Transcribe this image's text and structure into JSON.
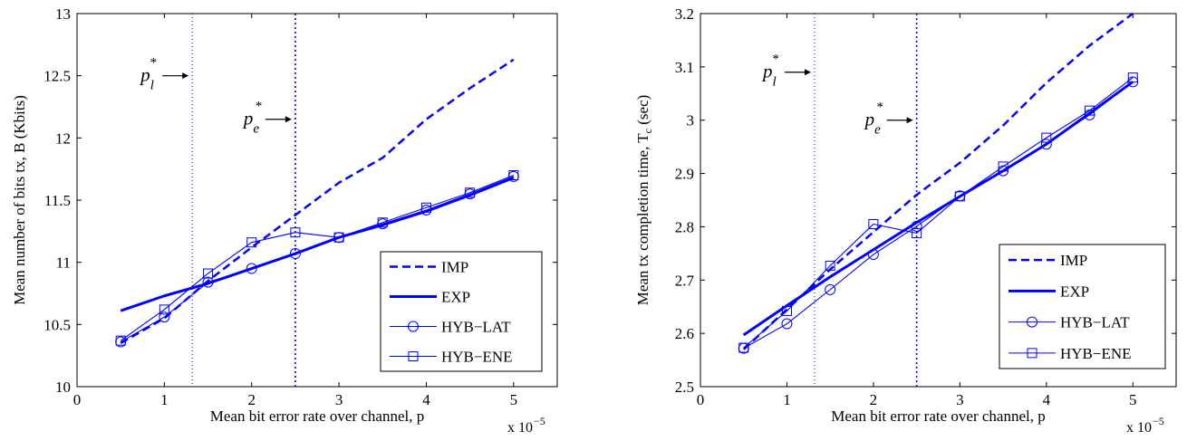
{
  "figure": {
    "background": "#ffffff",
    "series_color": "#0000ff",
    "axis_color": "#000000"
  },
  "chart_data": [
    {
      "type": "line",
      "xlabel": "Mean bit error rate over channel, p",
      "ylabel": "Mean number of bits tx, B (Kbits)",
      "x_multiplier_label": "x 10",
      "x_multiplier_exp": "−5",
      "xlim": [
        0,
        5.5
      ],
      "ylim": [
        10,
        13
      ],
      "xticks": [
        0,
        1,
        2,
        3,
        4,
        5
      ],
      "xtick_labels": [
        "0",
        "1",
        "2",
        "3",
        "4",
        "5"
      ],
      "yticks": [
        10,
        10.5,
        11,
        11.5,
        12,
        12.5,
        13
      ],
      "ytick_labels": [
        "10",
        "10.5",
        "11",
        "11.5",
        "12",
        "12.5",
        "13"
      ],
      "grid": false,
      "legend_position": "bottom-right",
      "vlines": [
        {
          "x": 1.32,
          "label_base": "p",
          "label_sub": "l",
          "label_sup": "*",
          "style": "dotted-thin",
          "label_y": 12.5
        },
        {
          "x": 2.5,
          "label_base": "p",
          "label_sub": "e",
          "label_sup": "*",
          "style": "dotted",
          "label_y": 12.15
        }
      ],
      "series": [
        {
          "name": "IMP",
          "style": "dashed",
          "marker": "none",
          "x": [
            0.5,
            1,
            1.5,
            2,
            2.5,
            3,
            3.5,
            4,
            4.5,
            5
          ],
          "y": [
            10.35,
            10.55,
            10.85,
            11.12,
            11.38,
            11.64,
            11.84,
            12.15,
            12.4,
            12.63
          ]
        },
        {
          "name": "EXP",
          "style": "thick",
          "marker": "none",
          "x": [
            0.5,
            1,
            1.5,
            2,
            2.5,
            3,
            3.5,
            4,
            4.5,
            5
          ],
          "y": [
            10.61,
            10.73,
            10.83,
            10.95,
            11.07,
            11.2,
            11.3,
            11.41,
            11.54,
            11.68
          ]
        },
        {
          "name": "HYB−LAT",
          "style": "thin",
          "marker": "circle",
          "x": [
            0.5,
            1,
            1.5,
            2,
            2.5,
            3,
            3.5,
            4,
            4.5,
            5
          ],
          "y": [
            10.36,
            10.56,
            10.84,
            10.95,
            11.07,
            11.2,
            11.31,
            11.42,
            11.55,
            11.69
          ]
        },
        {
          "name": "HYB−ENE",
          "style": "thin",
          "marker": "square",
          "x": [
            0.5,
            1,
            1.5,
            2,
            2.5,
            3,
            3.5,
            4,
            4.5,
            5
          ],
          "y": [
            10.37,
            10.62,
            10.91,
            11.16,
            11.24,
            11.2,
            11.32,
            11.44,
            11.56,
            11.7
          ]
        }
      ]
    },
    {
      "type": "line",
      "xlabel": "Mean bit error rate over channel, p",
      "ylabel": "Mean tx completion time, T",
      "ylabel_sub": "c",
      "ylabel_suffix": " (sec)",
      "x_multiplier_label": "x 10",
      "x_multiplier_exp": "−5",
      "xlim": [
        0,
        5.5
      ],
      "ylim": [
        2.5,
        3.2
      ],
      "xticks": [
        0,
        1,
        2,
        3,
        4,
        5
      ],
      "xtick_labels": [
        "0",
        "1",
        "2",
        "3",
        "4",
        "5"
      ],
      "yticks": [
        2.5,
        2.6,
        2.7,
        2.8,
        2.9,
        3.0,
        3.1,
        3.2
      ],
      "ytick_labels": [
        "2.5",
        "2.6",
        "2.7",
        "2.8",
        "2.9",
        "3",
        "3.1",
        "3.2"
      ],
      "grid": false,
      "legend_position": "bottom-right",
      "vlines": [
        {
          "x": 1.32,
          "label_base": "p",
          "label_sub": "l",
          "label_sup": "*",
          "style": "dotted-thin",
          "label_y": 3.09
        },
        {
          "x": 2.5,
          "label_base": "p",
          "label_sub": "e",
          "label_sup": "*",
          "style": "dotted",
          "label_y": 3.0
        }
      ],
      "series": [
        {
          "name": "IMP",
          "style": "dashed",
          "marker": "none",
          "x": [
            0.5,
            1,
            1.5,
            2,
            2.5,
            3,
            3.5,
            4,
            4.5,
            5
          ],
          "y": [
            2.57,
            2.645,
            2.72,
            2.79,
            2.86,
            2.92,
            2.99,
            3.07,
            3.14,
            3.2
          ]
        },
        {
          "name": "EXP",
          "style": "thick",
          "marker": "none",
          "x": [
            0.5,
            1,
            1.5,
            2,
            2.5,
            3,
            3.5,
            4,
            4.5,
            5
          ],
          "y": [
            2.597,
            2.652,
            2.706,
            2.757,
            2.808,
            2.857,
            2.905,
            2.955,
            3.013,
            3.072
          ]
        },
        {
          "name": "HYB−LAT",
          "style": "thin",
          "marker": "circle",
          "x": [
            0.5,
            1,
            1.5,
            2,
            2.5,
            3,
            3.5,
            4,
            4.5,
            5
          ],
          "y": [
            2.572,
            2.618,
            2.682,
            2.748,
            2.801,
            2.858,
            2.905,
            2.955,
            3.01,
            3.072
          ]
        },
        {
          "name": "HYB−ENE",
          "style": "thin",
          "marker": "square",
          "x": [
            0.5,
            1,
            1.5,
            2,
            2.5,
            3,
            3.5,
            4,
            4.5,
            5
          ],
          "y": [
            2.573,
            2.642,
            2.727,
            2.805,
            2.788,
            2.857,
            2.913,
            2.967,
            3.018,
            3.08
          ]
        }
      ]
    }
  ]
}
